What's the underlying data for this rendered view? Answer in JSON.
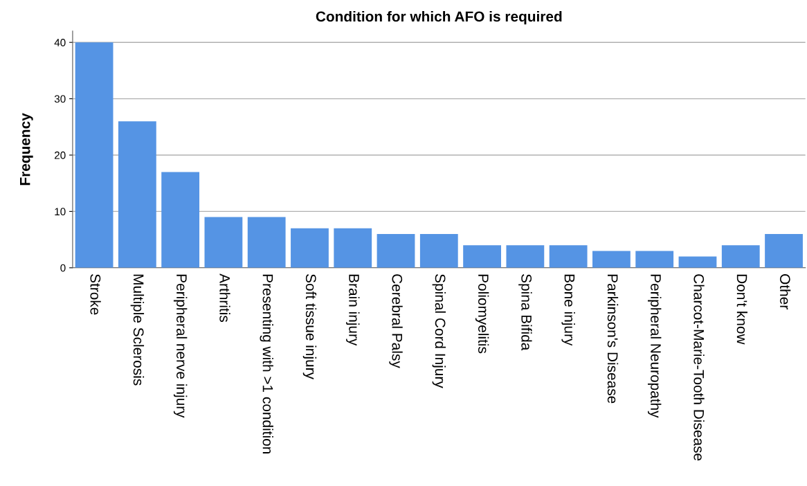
{
  "chart_data": {
    "type": "bar",
    "title": "Condition for which AFO is required",
    "ylabel": "Frequency",
    "categories": [
      "Stroke",
      "Multiple Sclerosis",
      "Peripheral nerve injury",
      "Arthritis",
      "Presenting with >1 condition",
      "Soft tissue injury",
      "Brain injury",
      "Cerebral Palsy",
      "Spinal Cord Injury",
      "Poliomyelitis",
      "Spina Bifida",
      "Bone injury",
      "Parkinson's Disease",
      "Peripheral Neuropathy",
      "Charcot-Marie-Tooth Disease",
      "Don't know",
      "Other"
    ],
    "values": [
      40,
      26,
      17,
      9,
      9,
      7,
      7,
      6,
      6,
      4,
      4,
      4,
      3,
      3,
      2,
      4,
      6
    ],
    "color": "#5594e4",
    "ylim": [
      0,
      42
    ],
    "yticks": [
      0,
      10,
      20,
      30,
      40
    ],
    "grid": "y"
  }
}
